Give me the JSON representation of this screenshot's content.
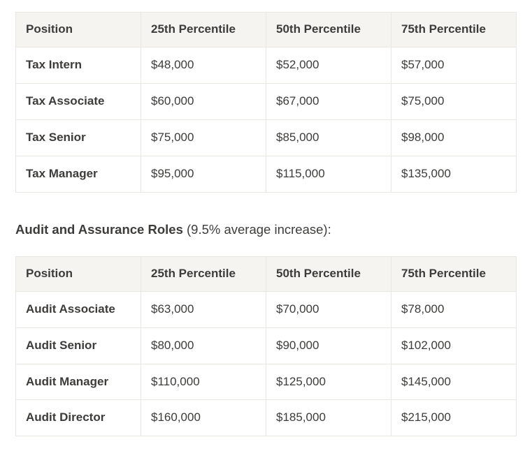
{
  "colors": {
    "page-bg": "#ffffff",
    "header-bg": "#f5f4f0",
    "border": "#e9e7e2",
    "text": "#3d3c3a"
  },
  "tax_table": {
    "headers": [
      "Position",
      "25th Percentile",
      "50th Percentile",
      "75th Percentile"
    ],
    "rows": [
      [
        "Tax Intern",
        "$48,000",
        "$52,000",
        "$57,000"
      ],
      [
        "Tax Associate",
        "$60,000",
        "$67,000",
        "$75,000"
      ],
      [
        "Tax Senior",
        "$75,000",
        "$85,000",
        "$98,000"
      ],
      [
        "Tax Manager",
        "$95,000",
        "$115,000",
        "$135,000"
      ]
    ]
  },
  "heading": {
    "bold": "Audit and Assurance Roles",
    "rest": " (9.5% average increase):"
  },
  "audit_table": {
    "headers": [
      "Position",
      "25th Percentile",
      "50th Percentile",
      "75th Percentile"
    ],
    "rows": [
      [
        "Audit Associate",
        "$63,000",
        "$70,000",
        "$78,000"
      ],
      [
        "Audit Senior",
        "$80,000",
        "$90,000",
        "$102,000"
      ],
      [
        "Audit Manager",
        "$110,000",
        "$125,000",
        "$145,000"
      ],
      [
        "Audit Director",
        "$160,000",
        "$185,000",
        "$215,000"
      ]
    ]
  }
}
